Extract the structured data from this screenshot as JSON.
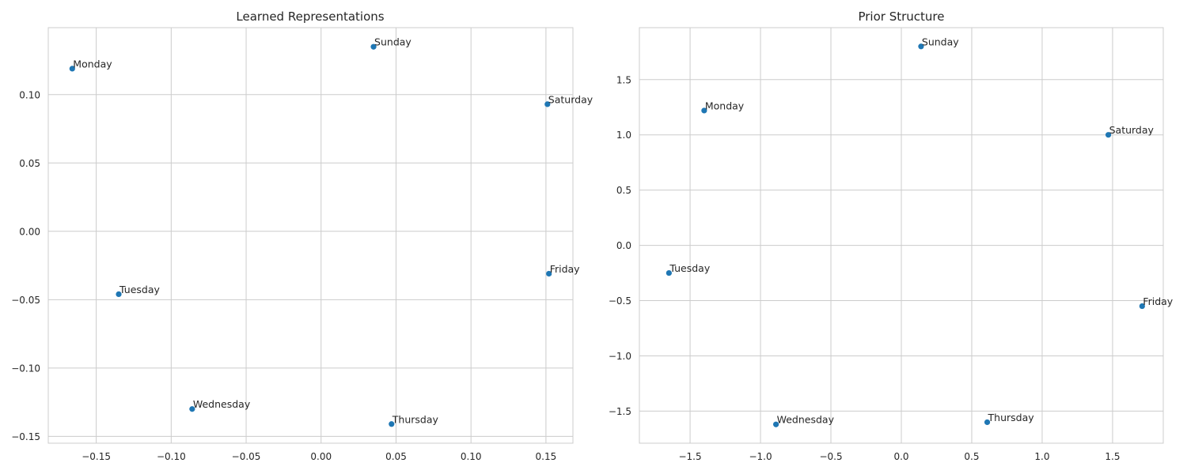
{
  "colors": {
    "marker": "#1f77b4",
    "grid": "#cccccc",
    "text": "#262626",
    "background": "#ffffff"
  },
  "chart_data": [
    {
      "type": "scatter",
      "title": "Learned Representations",
      "xlabel": "",
      "ylabel": "",
      "xlim": [
        -0.182,
        0.168
      ],
      "ylim": [
        -0.155,
        0.149
      ],
      "xticks": [
        -0.15,
        -0.1,
        -0.05,
        0.0,
        0.05,
        0.1,
        0.15
      ],
      "xtick_labels": [
        "−0.15",
        "−0.10",
        "−0.05",
        "0.00",
        "0.05",
        "0.10",
        "0.15"
      ],
      "yticks": [
        -0.15,
        -0.1,
        -0.05,
        0.0,
        0.05,
        0.1
      ],
      "ytick_labels": [
        "−0.15",
        "−0.10",
        "−0.05",
        "0.00",
        "0.05",
        "0.10"
      ],
      "grid": true,
      "points": [
        {
          "label": "Monday",
          "x": -0.166,
          "y": 0.119
        },
        {
          "label": "Sunday",
          "x": 0.035,
          "y": 0.135
        },
        {
          "label": "Saturday",
          "x": 0.151,
          "y": 0.093
        },
        {
          "label": "Friday",
          "x": 0.152,
          "y": -0.031
        },
        {
          "label": "Tuesday",
          "x": -0.135,
          "y": -0.046
        },
        {
          "label": "Wednesday",
          "x": -0.086,
          "y": -0.13
        },
        {
          "label": "Thursday",
          "x": 0.047,
          "y": -0.141
        }
      ]
    },
    {
      "type": "scatter",
      "title": "Prior Structure",
      "xlabel": "",
      "ylabel": "",
      "xlim": [
        -1.86,
        1.86
      ],
      "ylim": [
        -1.79,
        1.97
      ],
      "xticks": [
        -1.5,
        -1.0,
        -0.5,
        0.0,
        0.5,
        1.0,
        1.5
      ],
      "xtick_labels": [
        "−1.5",
        "−1.0",
        "−0.5",
        "0.0",
        "0.5",
        "1.0",
        "1.5"
      ],
      "yticks": [
        -1.5,
        -1.0,
        -0.5,
        0.0,
        0.5,
        1.0,
        1.5
      ],
      "ytick_labels": [
        "−1.5",
        "−1.0",
        "−0.5",
        "0.0",
        "0.5",
        "1.0",
        "1.5"
      ],
      "grid": true,
      "points": [
        {
          "label": "Sunday",
          "x": 0.14,
          "y": 1.8
        },
        {
          "label": "Monday",
          "x": -1.4,
          "y": 1.22
        },
        {
          "label": "Saturday",
          "x": 1.47,
          "y": 1.0
        },
        {
          "label": "Tuesday",
          "x": -1.65,
          "y": -0.25
        },
        {
          "label": "Friday",
          "x": 1.71,
          "y": -0.55
        },
        {
          "label": "Wednesday",
          "x": -0.89,
          "y": -1.62
        },
        {
          "label": "Thursday",
          "x": 0.61,
          "y": -1.6
        }
      ]
    }
  ]
}
